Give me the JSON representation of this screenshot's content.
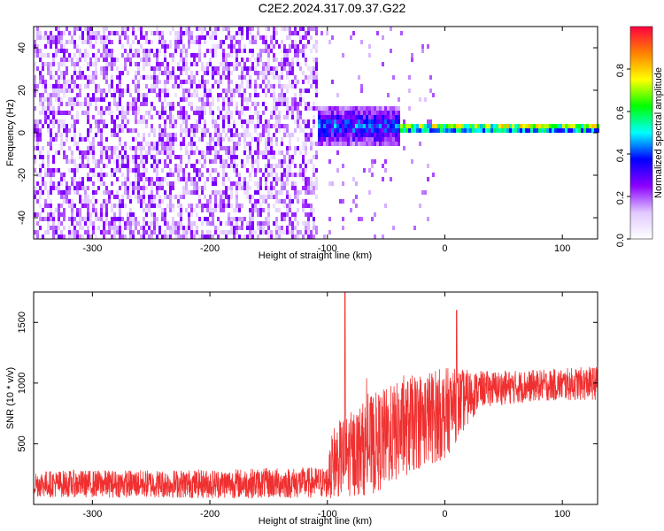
{
  "title": "C2E2.2024.317.09.37.G22",
  "chart_data": [
    {
      "type": "heatmap",
      "xlabel": "Height of straight line (km)",
      "ylabel": "Frequency (Hz)",
      "xlim": [
        -350,
        130
      ],
      "ylim": [
        -50,
        50
      ],
      "xticks": [
        -300,
        -200,
        -100,
        0,
        100
      ],
      "yticks": [
        -40,
        -20,
        0,
        20,
        40
      ],
      "colorbar": {
        "label": "Normalized spectral amplitude",
        "range": [
          0.0,
          1.0
        ],
        "ticks": [
          "0.0",
          "0.2",
          "0.4",
          "0.6",
          "0.8"
        ],
        "colors": [
          "#ffffff",
          "#e0c8ff",
          "#8b00ff",
          "#0000ff",
          "#00ffff",
          "#00ff00",
          "#ffff00",
          "#ff8000",
          "#ff0040"
        ]
      },
      "features": [
        {
          "x_range": [
            -350,
            -110
          ],
          "freq_range": [
            -50,
            50
          ],
          "amplitude": 0.1,
          "description_kind": "broadband noise"
        },
        {
          "x_range": [
            -110,
            -40
          ],
          "freq_center": 2,
          "freq_spread": 8,
          "amplitude": 0.4
        },
        {
          "x_range": [
            -40,
            130
          ],
          "freq_center": 1.5,
          "freq_spread": 2,
          "amplitude": 0.75
        }
      ]
    },
    {
      "type": "line",
      "xlabel": "Height of straight line (km)",
      "ylabel": "SNR (10 * v/v)",
      "xlim": [
        -350,
        130
      ],
      "ylim": [
        0,
        1750
      ],
      "xticks": [
        -300,
        -200,
        -100,
        0,
        100
      ],
      "yticks": [
        500,
        1000,
        1500
      ],
      "color": "#f03030",
      "series_profile": [
        {
          "x": -350,
          "mean": 170,
          "spread": 110
        },
        {
          "x": -200,
          "mean": 170,
          "spread": 120
        },
        {
          "x": -100,
          "mean": 180,
          "spread": 130
        },
        {
          "x": -95,
          "mean": 350,
          "spread": 300
        },
        {
          "x": -60,
          "mean": 500,
          "spread": 420
        },
        {
          "x": -20,
          "mean": 700,
          "spread": 400
        },
        {
          "x": 0,
          "mean": 750,
          "spread": 380
        },
        {
          "x": 30,
          "mean": 950,
          "spread": 150
        },
        {
          "x": 80,
          "mean": 980,
          "spread": 130
        },
        {
          "x": 130,
          "mean": 1000,
          "spread": 140
        }
      ],
      "peaks": [
        {
          "x": -85,
          "y": 1750
        },
        {
          "x": 10,
          "y": 1600
        }
      ]
    }
  ]
}
